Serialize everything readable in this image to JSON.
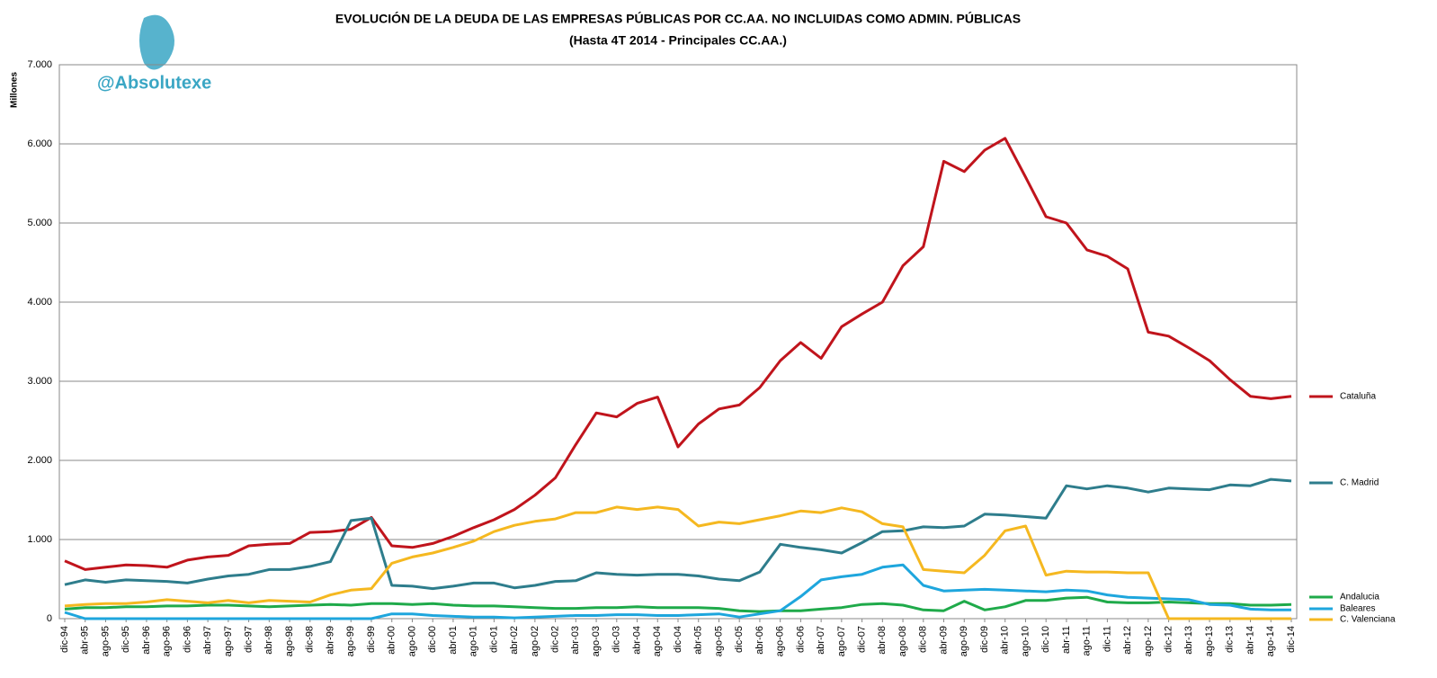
{
  "chart_data": {
    "type": "line",
    "title": "EVOLUCIÓN DE LA DEUDA DE LAS EMPRESAS PÚBLICAS POR CC.AA.  NO INCLUIDAS COMO ADMIN. PÚBLICAS",
    "subtitle": "(Hasta 4T 2014 - Principales CC.AA.)",
    "watermark": "@Absolutexe",
    "y_label": "Millones",
    "categories": [
      "dic-94",
      "abr-95",
      "ago-95",
      "dic-95",
      "abr-96",
      "ago-96",
      "dic-96",
      "abr-97",
      "ago-97",
      "dic-97",
      "abr-98",
      "ago-98",
      "dic-98",
      "abr-99",
      "ago-99",
      "dic-99",
      "abr-00",
      "ago-00",
      "dic-00",
      "abr-01",
      "ago-01",
      "dic-01",
      "abr-02",
      "ago-02",
      "dic-02",
      "abr-03",
      "ago-03",
      "dic-03",
      "abr-04",
      "ago-04",
      "dic-04",
      "abr-05",
      "ago-05",
      "dic-05",
      "abr-06",
      "ago-06",
      "dic-06",
      "abr-07",
      "ago-07",
      "dic-07",
      "abr-08",
      "ago-08",
      "dic-08",
      "abr-09",
      "ago-09",
      "dic-09",
      "abr-10",
      "ago-10",
      "dic-10",
      "abr-11",
      "ago-11",
      "dic-11",
      "abr-12",
      "ago-12",
      "dic-12",
      "abr-13",
      "ago-13",
      "dic-13",
      "abr-14",
      "ago-14",
      "dic-14"
    ],
    "series": [
      {
        "name": "Cataluña",
        "color": "#c0141c",
        "values": [
          730,
          620,
          650,
          680,
          670,
          650,
          740,
          780,
          800,
          920,
          940,
          950,
          1090,
          1100,
          1130,
          1280,
          920,
          900,
          950,
          1040,
          1150,
          1250,
          1380,
          1560,
          1780,
          2200,
          2600,
          2550,
          2720,
          2800,
          2170,
          2460,
          2650,
          2700,
          2920,
          3260,
          3490,
          3290,
          3690,
          3850,
          4000,
          4460,
          4700,
          5780,
          5650,
          5920,
          6070,
          5580,
          5080,
          5000,
          4660,
          4580,
          4420,
          3620,
          3570,
          3420,
          3260,
          3020,
          2810,
          2780,
          2810
        ]
      },
      {
        "name": "C. Madrid",
        "color": "#2e7d8c",
        "values": [
          430,
          490,
          460,
          490,
          480,
          470,
          450,
          500,
          540,
          560,
          620,
          620,
          660,
          720,
          1240,
          1270,
          420,
          410,
          380,
          410,
          450,
          450,
          390,
          420,
          470,
          480,
          580,
          560,
          550,
          560,
          560,
          540,
          500,
          480,
          590,
          940,
          900,
          870,
          830,
          960,
          1100,
          1110,
          1160,
          1150,
          1170,
          1320,
          1310,
          1290,
          1270,
          1680,
          1640,
          1680,
          1650,
          1600,
          1650,
          1640,
          1630,
          1690,
          1680,
          1760,
          1740
        ]
      },
      {
        "name": "Andalucia",
        "color": "#1faa4a",
        "values": [
          120,
          140,
          140,
          150,
          150,
          160,
          160,
          170,
          170,
          160,
          150,
          160,
          170,
          180,
          170,
          190,
          190,
          180,
          190,
          170,
          160,
          160,
          150,
          140,
          130,
          130,
          140,
          140,
          150,
          140,
          140,
          140,
          130,
          100,
          90,
          100,
          100,
          120,
          140,
          180,
          190,
          170,
          110,
          100,
          220,
          110,
          150,
          230,
          230,
          260,
          270,
          210,
          200,
          200,
          210,
          200,
          190,
          190,
          170,
          170,
          180
        ]
      },
      {
        "name": "Baleares",
        "color": "#1ea6dd",
        "values": [
          80,
          0,
          0,
          0,
          0,
          0,
          0,
          0,
          0,
          0,
          0,
          0,
          0,
          0,
          0,
          0,
          60,
          60,
          40,
          30,
          20,
          20,
          10,
          20,
          30,
          40,
          40,
          50,
          50,
          40,
          40,
          50,
          60,
          20,
          60,
          100,
          280,
          490,
          530,
          560,
          650,
          680,
          420,
          350,
          360,
          370,
          360,
          350,
          340,
          360,
          350,
          300,
          270,
          260,
          250,
          240,
          180,
          170,
          120,
          110,
          110
        ]
      },
      {
        "name": "C. Valenciana",
        "color": "#f5b820",
        "values": [
          160,
          180,
          190,
          190,
          210,
          240,
          220,
          200,
          230,
          200,
          230,
          220,
          210,
          300,
          360,
          380,
          700,
          780,
          830,
          900,
          980,
          1100,
          1180,
          1230,
          1260,
          1340,
          1340,
          1410,
          1380,
          1410,
          1380,
          1170,
          1220,
          1200,
          1250,
          1300,
          1360,
          1340,
          1400,
          1350,
          1200,
          1160,
          620,
          600,
          580,
          800,
          1110,
          1170,
          550,
          600,
          590,
          590,
          580,
          580,
          0,
          0,
          0,
          0,
          0,
          0,
          0
        ]
      }
    ],
    "ylim": [
      0,
      7000
    ],
    "yticks": [
      0,
      {
        "value": 1000,
        "label": "1.000"
      },
      {
        "value": 2000,
        "label": "2.000"
      },
      {
        "value": 3000,
        "label": "3.000"
      },
      {
        "value": 4000,
        "label": "4.000"
      },
      {
        "value": 5000,
        "label": "5.000"
      },
      {
        "value": 6000,
        "label": "6.000"
      },
      {
        "value": 7000,
        "label": "7.000"
      }
    ],
    "grid": true,
    "legend": "right"
  }
}
